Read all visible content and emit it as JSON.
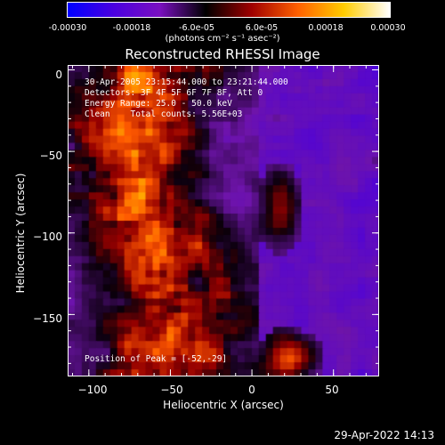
{
  "colorbar": {
    "ticks": [
      "-0.00030",
      "-0.00018",
      "-6.0e-05",
      "6.0e-05",
      "0.00018",
      "0.00030"
    ],
    "units": "(photons cm⁻² s⁻¹ asec⁻²)",
    "colors": [
      "#0000ff",
      "#4a00e0",
      "#7a10c0",
      "#000000",
      "#a00000",
      "#ff6000",
      "#ffcc00",
      "#ffffff"
    ]
  },
  "info": {
    "line1": "30-Apr-2005 23:15:44.000 to 23:21:44.000",
    "line2": "Detectors: 3F 4F 5F 6F 7F 8F, Att 0",
    "line3": "Energy Range: 25.0 - 50.0 keV",
    "line4": "Clean    Total counts: 5.56E+03",
    "peak": "Position of Peak = [-52,-29]"
  },
  "timestamp": "29-Apr-2022 14:13",
  "chart_data": {
    "type": "heatmap",
    "title": "Reconstructed RHESSI Image",
    "xlabel": "Heliocentric X (arcsec)",
    "ylabel": "Heliocentric Y (arcsec)",
    "xlim": [
      -113,
      78
    ],
    "ylim": [
      -188,
      3
    ],
    "xticks": [
      -100,
      -50,
      0,
      50
    ],
    "xtick_labels": [
      "−100",
      "−50",
      "0",
      "50"
    ],
    "yticks": [
      0,
      -50,
      -100,
      -150
    ],
    "ytick_labels": [
      "0",
      "−50",
      "−100",
      "−150"
    ],
    "colorbar_range": [
      -0.0003,
      0.0003
    ],
    "peak_position": [
      -52,
      -29
    ],
    "grid": false
  }
}
